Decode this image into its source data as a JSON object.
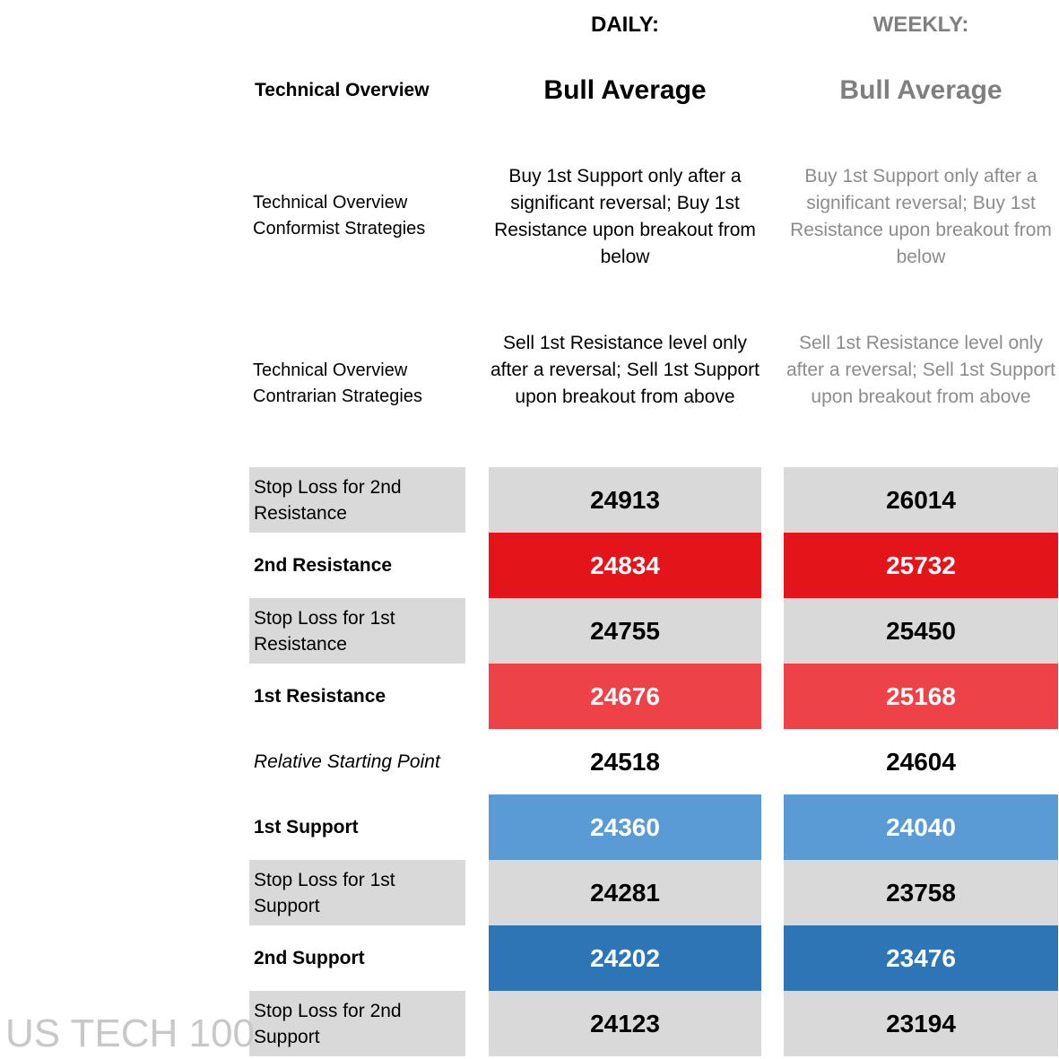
{
  "headers": {
    "daily": "DAILY:",
    "weekly": "WEEKLY:"
  },
  "technical_overview": {
    "label": "Technical Overview",
    "daily": "Bull Average",
    "weekly": "Bull Average"
  },
  "conformist": {
    "label_line1": "Technical Overview",
    "label_line2": "Conformist Strategies",
    "daily": "Buy 1st Support only after a significant reversal; Buy 1st Resistance upon breakout from below",
    "weekly": "Buy 1st Support only after a significant reversal; Buy 1st Resistance upon breakout from below"
  },
  "contrarian": {
    "label_line1": "Technical Overview",
    "label_line2": "Contrarian Strategies",
    "daily": "Sell 1st Resistance level only after a reversal; Sell 1st Support upon breakout from above",
    "weekly": "Sell 1st Resistance level only after a reversal; Sell 1st Support upon breakout from above"
  },
  "levels": [
    {
      "label": "Stop Loss for 2nd Resistance",
      "style": "stop",
      "daily": "24913",
      "weekly": "26014",
      "label_bg": "#d9d9d9",
      "cell_bg": "#d9d9d9",
      "cell_color": "#000000"
    },
    {
      "label": "2nd Resistance",
      "style": "bold",
      "daily": "24834",
      "weekly": "25732",
      "label_bg": "#ffffff",
      "cell_bg": "#e3151b",
      "cell_color": "#ffffff"
    },
    {
      "label": "Stop Loss for 1st Resistance",
      "style": "stop",
      "daily": "24755",
      "weekly": "25450",
      "label_bg": "#d9d9d9",
      "cell_bg": "#d9d9d9",
      "cell_color": "#000000"
    },
    {
      "label": "1st Resistance",
      "style": "bold",
      "daily": "24676",
      "weekly": "25168",
      "label_bg": "#ffffff",
      "cell_bg": "#ee4249",
      "cell_color": "#ffffff"
    },
    {
      "label": "Relative Starting Point",
      "style": "italic",
      "daily": "24518",
      "weekly": "24604",
      "label_bg": "#ffffff",
      "cell_bg": "#ffffff",
      "cell_color": "#000000"
    },
    {
      "label": "1st Support",
      "style": "bold",
      "daily": "24360",
      "weekly": "24040",
      "label_bg": "#ffffff",
      "cell_bg": "#5b9bd5",
      "cell_color": "#ffffff"
    },
    {
      "label": "Stop Loss for 1st Support",
      "style": "stop",
      "daily": "24281",
      "weekly": "23758",
      "label_bg": "#d9d9d9",
      "cell_bg": "#d9d9d9",
      "cell_color": "#000000"
    },
    {
      "label": "2nd Support",
      "style": "bold",
      "daily": "24202",
      "weekly": "23476",
      "label_bg": "#ffffff",
      "cell_bg": "#2e75b6",
      "cell_color": "#ffffff"
    },
    {
      "label": "Stop Loss for 2nd Support",
      "style": "stop",
      "daily": "24123",
      "weekly": "23194",
      "label_bg": "#d9d9d9",
      "cell_bg": "#d9d9d9",
      "cell_color": "#000000"
    }
  ],
  "watermark": "US TECH 100"
}
